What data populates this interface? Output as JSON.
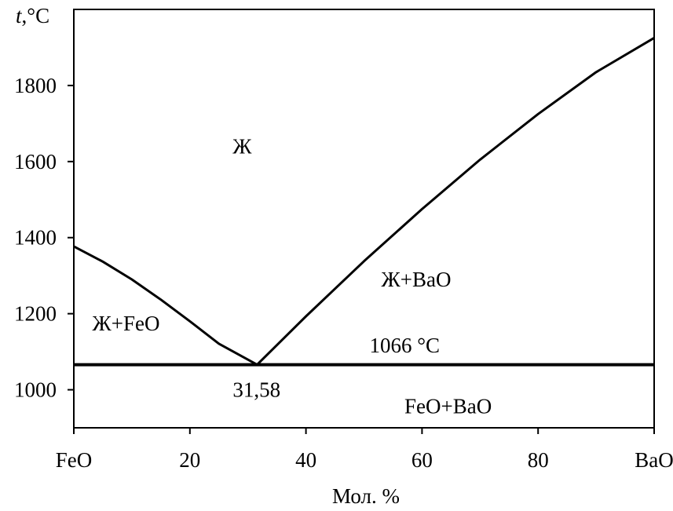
{
  "chart_data": {
    "type": "line",
    "title": "",
    "xlabel": "Мол. %",
    "ylabel_italic": "t",
    "ylabel_unit": ",°C",
    "xlim": [
      0,
      100
    ],
    "ylim": [
      900,
      2000
    ],
    "x_ticks": [
      {
        "value": 0,
        "label": "FeO"
      },
      {
        "value": 20,
        "label": "20"
      },
      {
        "value": 40,
        "label": "40"
      },
      {
        "value": 60,
        "label": "60"
      },
      {
        "value": 80,
        "label": "80"
      },
      {
        "value": 100,
        "label": "BaO"
      }
    ],
    "y_ticks": [
      {
        "value": 1000,
        "label": "1000"
      },
      {
        "value": 1200,
        "label": "1200"
      },
      {
        "value": 1400,
        "label": "1400"
      },
      {
        "value": 1600,
        "label": "1600"
      },
      {
        "value": 1800,
        "label": "1800"
      }
    ],
    "grid": false,
    "series": [
      {
        "x": [
          0,
          5,
          10,
          15,
          20,
          25,
          31.58
        ],
        "y": [
          1377,
          1337,
          1290,
          1237,
          1180,
          1121,
          1066
        ]
      },
      {
        "x": [
          31.58,
          40,
          50,
          60,
          70,
          80,
          90,
          100
        ],
        "y": [
          1066,
          1193,
          1338,
          1475,
          1605,
          1725,
          1835,
          1925
        ]
      },
      {
        "x": [
          0,
          100
        ],
        "y": [
          1066,
          1066
        ],
        "bold": true
      }
    ],
    "annotations": [
      {
        "text": "Ж",
        "x": 29,
        "y": 1640
      },
      {
        "text": "Ж+BaO",
        "x": 59,
        "y": 1290
      },
      {
        "text": "Ж+FeO",
        "x": 9,
        "y": 1175
      },
      {
        "text": "1066 °C",
        "x": 57,
        "y": 1117
      },
      {
        "text": "31,58",
        "x": 31.5,
        "y": 1000
      },
      {
        "text": "FeO+BaO",
        "x": 64.5,
        "y": 957
      }
    ]
  }
}
